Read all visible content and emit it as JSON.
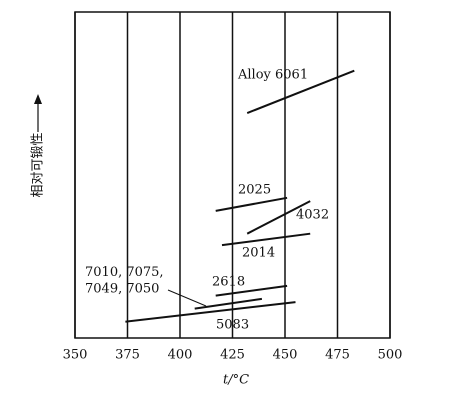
{
  "chart_data": {
    "type": "line",
    "x_label": "t/°C",
    "y_label": "相对可锻性",
    "xlim": [
      350,
      500
    ],
    "xticks": [
      350,
      375,
      400,
      425,
      450,
      475,
      500
    ],
    "ylim": [
      0,
      100
    ],
    "grid": true,
    "color": "#111111",
    "series": [
      {
        "name": "Alloy 6061",
        "x": [
          432,
          483
        ],
        "values": [
          69,
          82
        ]
      },
      {
        "name": "2025",
        "x": [
          417,
          451
        ],
        "values": [
          39,
          43
        ]
      },
      {
        "name": "4032",
        "x": [
          432,
          462
        ],
        "values": [
          32,
          42
        ]
      },
      {
        "name": "2014",
        "x": [
          420,
          462
        ],
        "values": [
          28.5,
          32
        ]
      },
      {
        "name": "2618",
        "x": [
          417,
          451
        ],
        "values": [
          13,
          16
        ]
      },
      {
        "name": "7010, 7075,\n7049, 7050",
        "x": [
          407,
          439
        ],
        "values": [
          9,
          12
        ]
      },
      {
        "name": "5083",
        "x": [
          374,
          455
        ],
        "values": [
          5,
          11
        ]
      }
    ]
  }
}
